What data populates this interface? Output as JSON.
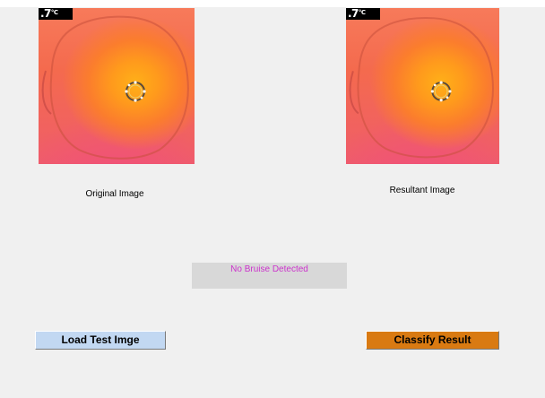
{
  "panels": {
    "original": {
      "caption": "Original Image",
      "temperature": ".7",
      "temperature_unit": "°C"
    },
    "resultant": {
      "caption": "Resultant Image",
      "temperature": ".7",
      "temperature_unit": "°C"
    }
  },
  "status": {
    "text": "No Bruise Detected",
    "color": "#cc33cc"
  },
  "buttons": {
    "load_label": "Load Test  Imge",
    "classify_label": "Classify Result"
  },
  "colors": {
    "background": "#f0f0f0",
    "load_button": "#c2d8f2",
    "classify_button": "#d97a12",
    "status_box": "#d8d8d8"
  }
}
